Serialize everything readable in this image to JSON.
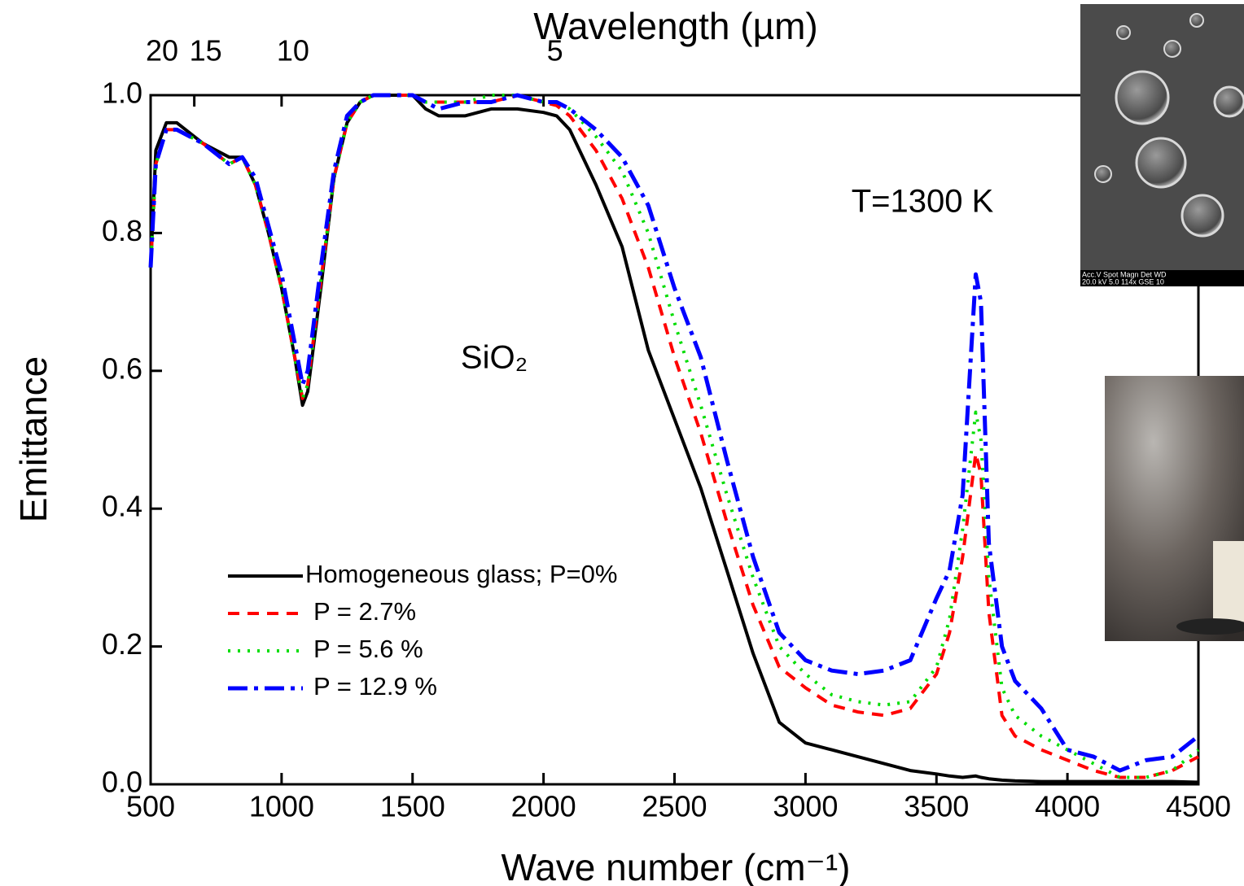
{
  "chart_data": {
    "type": "line",
    "title": "Wavelength (µm)",
    "x_label": "Wave number (cm⁻¹)",
    "y_label": "Emittance",
    "annotations": [
      "T=1300 K",
      "SiO₂"
    ],
    "inset_labels": [
      "Acc.V   Spot Magn     Det  WD",
      "20.0 kV 5.0   114x      GSE 10"
    ],
    "x": [
      500,
      520,
      560,
      600,
      700,
      800,
      850,
      900,
      950,
      1000,
      1050,
      1080,
      1100,
      1150,
      1200,
      1250,
      1300,
      1350,
      1400,
      1500,
      1550,
      1600,
      1700,
      1800,
      1900,
      2000,
      2050,
      2100,
      2200,
      2300,
      2400,
      2500,
      2600,
      2700,
      2800,
      2900,
      3000,
      3100,
      3200,
      3300,
      3400,
      3500,
      3550,
      3600,
      3650,
      3670,
      3700,
      3750,
      3800,
      3900,
      4000,
      4100,
      4200,
      4300,
      4400,
      4500
    ],
    "series": [
      {
        "name": "Homogeneous glass; P=0%",
        "color": "#000000",
        "line_style": "solid",
        "values": [
          0.75,
          0.92,
          0.96,
          0.96,
          0.93,
          0.91,
          0.91,
          0.87,
          0.8,
          0.72,
          0.62,
          0.55,
          0.57,
          0.72,
          0.88,
          0.96,
          0.99,
          1.0,
          1.0,
          1.0,
          0.98,
          0.97,
          0.97,
          0.98,
          0.98,
          0.975,
          0.97,
          0.95,
          0.87,
          0.78,
          0.63,
          0.53,
          0.43,
          0.31,
          0.19,
          0.09,
          0.06,
          0.05,
          0.04,
          0.03,
          0.02,
          0.015,
          0.012,
          0.01,
          0.012,
          0.01,
          0.008,
          0.006,
          0.005,
          0.004,
          0.004,
          0.004,
          0.004,
          0.004,
          0.004,
          0.003
        ]
      },
      {
        "name": "P = 2.7%",
        "color": "#ff0000",
        "line_style": "dashed",
        "values": [
          0.75,
          0.9,
          0.95,
          0.95,
          0.93,
          0.9,
          0.91,
          0.87,
          0.8,
          0.72,
          0.62,
          0.56,
          0.58,
          0.73,
          0.88,
          0.96,
          0.99,
          1.0,
          1.0,
          1.0,
          0.99,
          0.99,
          0.99,
          0.99,
          1.0,
          0.99,
          0.985,
          0.97,
          0.92,
          0.85,
          0.75,
          0.62,
          0.51,
          0.38,
          0.26,
          0.17,
          0.14,
          0.115,
          0.105,
          0.1,
          0.11,
          0.16,
          0.22,
          0.33,
          0.48,
          0.45,
          0.25,
          0.1,
          0.07,
          0.05,
          0.035,
          0.02,
          0.01,
          0.01,
          0.02,
          0.04
        ]
      },
      {
        "name": "P = 5.6 %",
        "color": "#00dd00",
        "line_style": "dotted",
        "values": [
          0.75,
          0.9,
          0.95,
          0.95,
          0.93,
          0.9,
          0.91,
          0.87,
          0.8,
          0.72,
          0.62,
          0.56,
          0.58,
          0.73,
          0.88,
          0.96,
          0.99,
          1.0,
          1.0,
          1.0,
          0.99,
          0.99,
          0.99,
          1.0,
          1.0,
          0.99,
          0.99,
          0.98,
          0.94,
          0.89,
          0.8,
          0.67,
          0.55,
          0.42,
          0.3,
          0.2,
          0.16,
          0.13,
          0.12,
          0.115,
          0.12,
          0.17,
          0.24,
          0.37,
          0.54,
          0.5,
          0.3,
          0.14,
          0.1,
          0.07,
          0.05,
          0.03,
          0.01,
          0.01,
          0.02,
          0.05
        ]
      },
      {
        "name": "P = 12.9 %",
        "color": "#0000ff",
        "line_style": "dashdot",
        "values": [
          0.75,
          0.9,
          0.95,
          0.95,
          0.93,
          0.9,
          0.91,
          0.88,
          0.81,
          0.74,
          0.64,
          0.58,
          0.6,
          0.75,
          0.89,
          0.97,
          0.99,
          1.0,
          1.0,
          1.0,
          0.99,
          0.98,
          0.99,
          0.99,
          1.0,
          0.99,
          0.99,
          0.98,
          0.95,
          0.91,
          0.84,
          0.72,
          0.62,
          0.47,
          0.33,
          0.22,
          0.18,
          0.165,
          0.16,
          0.165,
          0.18,
          0.27,
          0.31,
          0.42,
          0.74,
          0.7,
          0.35,
          0.2,
          0.15,
          0.11,
          0.05,
          0.04,
          0.02,
          0.035,
          0.04,
          0.07
        ]
      }
    ],
    "xlim": [
      500,
      4500
    ],
    "xticks": [
      500,
      1000,
      1500,
      2000,
      2500,
      3000,
      3500,
      4000,
      4500
    ],
    "x2ticks": [
      {
        "value": 500,
        "label": "20"
      },
      {
        "value": 666.7,
        "label": "15"
      },
      {
        "value": 1000,
        "label": "10"
      },
      {
        "value": 2000,
        "label": "5"
      }
    ],
    "ylim": [
      0,
      1
    ],
    "yticks": [
      {
        "value": 0,
        "label": "0.0"
      },
      0.2,
      0.4,
      0.6,
      0.8,
      {
        "value": 1,
        "label": "1.0"
      }
    ],
    "grid": false,
    "legend": "lower left"
  }
}
